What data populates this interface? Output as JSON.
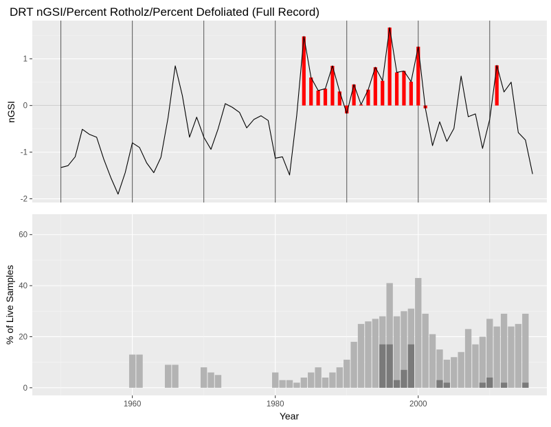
{
  "chart_data": [
    {
      "type": "line+bar",
      "panel": "top",
      "title": "DRT nGSI/Percent Rotholz/Percent Defoliated (Full Record)",
      "ylabel": "nGSI",
      "xlim": [
        1946,
        2018
      ],
      "ylim": [
        -2.08,
        1.82
      ],
      "yticks": [
        -2,
        -1,
        0,
        1
      ],
      "x_ticks": [
        1960,
        1980,
        2000
      ],
      "decade_lines": [
        1950,
        1960,
        1970,
        1980,
        1990,
        2000,
        2010
      ],
      "colors": {
        "line": "#000000",
        "bars": "#ff0000",
        "decade": "#555555"
      },
      "series": [
        {
          "name": "nGSI",
          "x": [
            1950,
            1951,
            1952,
            1953,
            1954,
            1955,
            1956,
            1957,
            1958,
            1959,
            1960,
            1961,
            1962,
            1963,
            1964,
            1965,
            1966,
            1967,
            1968,
            1969,
            1970,
            1971,
            1972,
            1973,
            1974,
            1975,
            1976,
            1977,
            1978,
            1979,
            1980,
            1981,
            1982,
            1983,
            1984,
            1985,
            1986,
            1987,
            1988,
            1989,
            1990,
            1991,
            1992,
            1993,
            1994,
            1995,
            1996,
            1997,
            1998,
            1999,
            2000,
            2001,
            2002,
            2003,
            2004,
            2005,
            2006,
            2007,
            2008,
            2009,
            2010,
            2011,
            2012,
            2013,
            2014,
            2015,
            2016
          ],
          "values": [
            -1.33,
            -1.29,
            -1.1,
            -0.51,
            -0.62,
            -0.68,
            -1.15,
            -1.55,
            -1.9,
            -1.44,
            -0.8,
            -0.9,
            -1.23,
            -1.44,
            -1.11,
            -0.26,
            0.85,
            0.21,
            -0.68,
            -0.25,
            -0.68,
            -0.94,
            -0.5,
            0.04,
            -0.04,
            -0.15,
            -0.48,
            -0.3,
            -0.22,
            -0.32,
            -1.13,
            -1.1,
            -1.49,
            -0.21,
            1.48,
            0.6,
            0.32,
            0.36,
            0.85,
            0.3,
            -0.17,
            0.45,
            0.02,
            0.34,
            0.82,
            0.53,
            1.67,
            0.71,
            0.74,
            0.51,
            1.26,
            -0.06,
            -0.86,
            -0.35,
            -0.77,
            -0.49,
            0.63,
            -0.24,
            -0.18,
            -0.92,
            -0.3,
            0.86,
            0.29,
            0.5,
            -0.58,
            -0.74,
            -1.47
          ]
        },
        {
          "name": "red-bars",
          "x": [
            1984,
            1985,
            1986,
            1987,
            1988,
            1989,
            1990,
            1991,
            1992,
            1993,
            1994,
            1995,
            1996,
            1997,
            1998,
            1999,
            2000,
            2001,
            2011
          ],
          "values": [
            1.48,
            0.6,
            0.32,
            0.36,
            0.85,
            0.3,
            -0.17,
            0.45,
            0.02,
            0.34,
            0.82,
            0.53,
            1.67,
            0.71,
            0.74,
            0.51,
            1.26,
            -0.06,
            0.86
          ]
        }
      ]
    },
    {
      "type": "bar",
      "panel": "bottom",
      "xlabel": "Year",
      "ylabel": "% of Live Samples",
      "xlim": [
        1946,
        2018
      ],
      "ylim": [
        -3,
        68
      ],
      "yticks": [
        0,
        20,
        40,
        60
      ],
      "x_ticks": [
        1960,
        1980,
        2000
      ],
      "colors": {
        "light": "#b3b3b3",
        "dark": "#7a7a7a"
      },
      "series": [
        {
          "name": "Percent Rotholz",
          "x": [
            1960,
            1961,
            1965,
            1966,
            1970,
            1971,
            1972,
            1980,
            1981,
            1982,
            1983,
            1984,
            1985,
            1986,
            1987,
            1988,
            1989,
            1990,
            1991,
            1992,
            1993,
            1994,
            1995,
            1996,
            1997,
            1998,
            1999,
            2000,
            2001,
            2002,
            2003,
            2004,
            2005,
            2006,
            2007,
            2008,
            2009,
            2010,
            2011,
            2012,
            2013,
            2014,
            2015
          ],
          "values": [
            13,
            13,
            9,
            9,
            8,
            6,
            5,
            6,
            3,
            3,
            2,
            4,
            6,
            8,
            4,
            6,
            8,
            11,
            18,
            25,
            26,
            27,
            28,
            41,
            28,
            30,
            31,
            43,
            29,
            21,
            15,
            11,
            12,
            14,
            23,
            17,
            20,
            27,
            24,
            29,
            24,
            25,
            29
          ]
        },
        {
          "name": "Percent Defoliated",
          "x": [
            1995,
            1996,
            1997,
            1998,
            1999,
            2003,
            2004,
            2009,
            2010,
            2012,
            2015
          ],
          "values": [
            17,
            17,
            3,
            7,
            17,
            3,
            2,
            2,
            4,
            2,
            2
          ]
        }
      ]
    }
  ]
}
